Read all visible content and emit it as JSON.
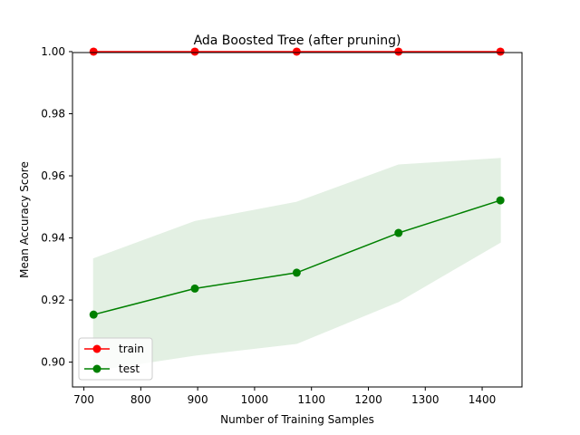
{
  "chart_data": {
    "type": "line",
    "title": "Ada Boosted Tree (after pruning)",
    "xlabel": "Number of Training Samples",
    "ylabel": "Mean Accuracy Score",
    "xlim": [
      680,
      1470
    ],
    "ylim": [
      0.892,
      0.9997
    ],
    "x": [
      717,
      895,
      1074,
      1253,
      1432
    ],
    "xticks": [
      700,
      800,
      900,
      1000,
      1100,
      1200,
      1300,
      1400
    ],
    "yticks": [
      0.9,
      0.92,
      0.94,
      0.96,
      0.98,
      1.0
    ],
    "ytick_labels": [
      "0.90",
      "0.92",
      "0.94",
      "0.96",
      "0.98",
      "1.00"
    ],
    "grid": false,
    "legend": {
      "placement": "lower left"
    },
    "series": [
      {
        "name": "train",
        "color": "#ff0000",
        "values": [
          1.0,
          1.0,
          1.0,
          1.0,
          1.0
        ],
        "band_lower": [
          1.0,
          1.0,
          1.0,
          1.0,
          1.0
        ],
        "band_upper": [
          1.0,
          1.0,
          1.0,
          1.0,
          1.0
        ]
      },
      {
        "name": "test",
        "color": "#008000",
        "values": [
          0.9153,
          0.9237,
          0.9288,
          0.9416,
          0.9521
        ],
        "band_lower": [
          0.8973,
          0.9022,
          0.906,
          0.9195,
          0.9386
        ],
        "band_upper": [
          0.9333,
          0.9453,
          0.9515,
          0.9635,
          0.9656
        ],
        "band_color": "#e3f0e3"
      }
    ]
  }
}
